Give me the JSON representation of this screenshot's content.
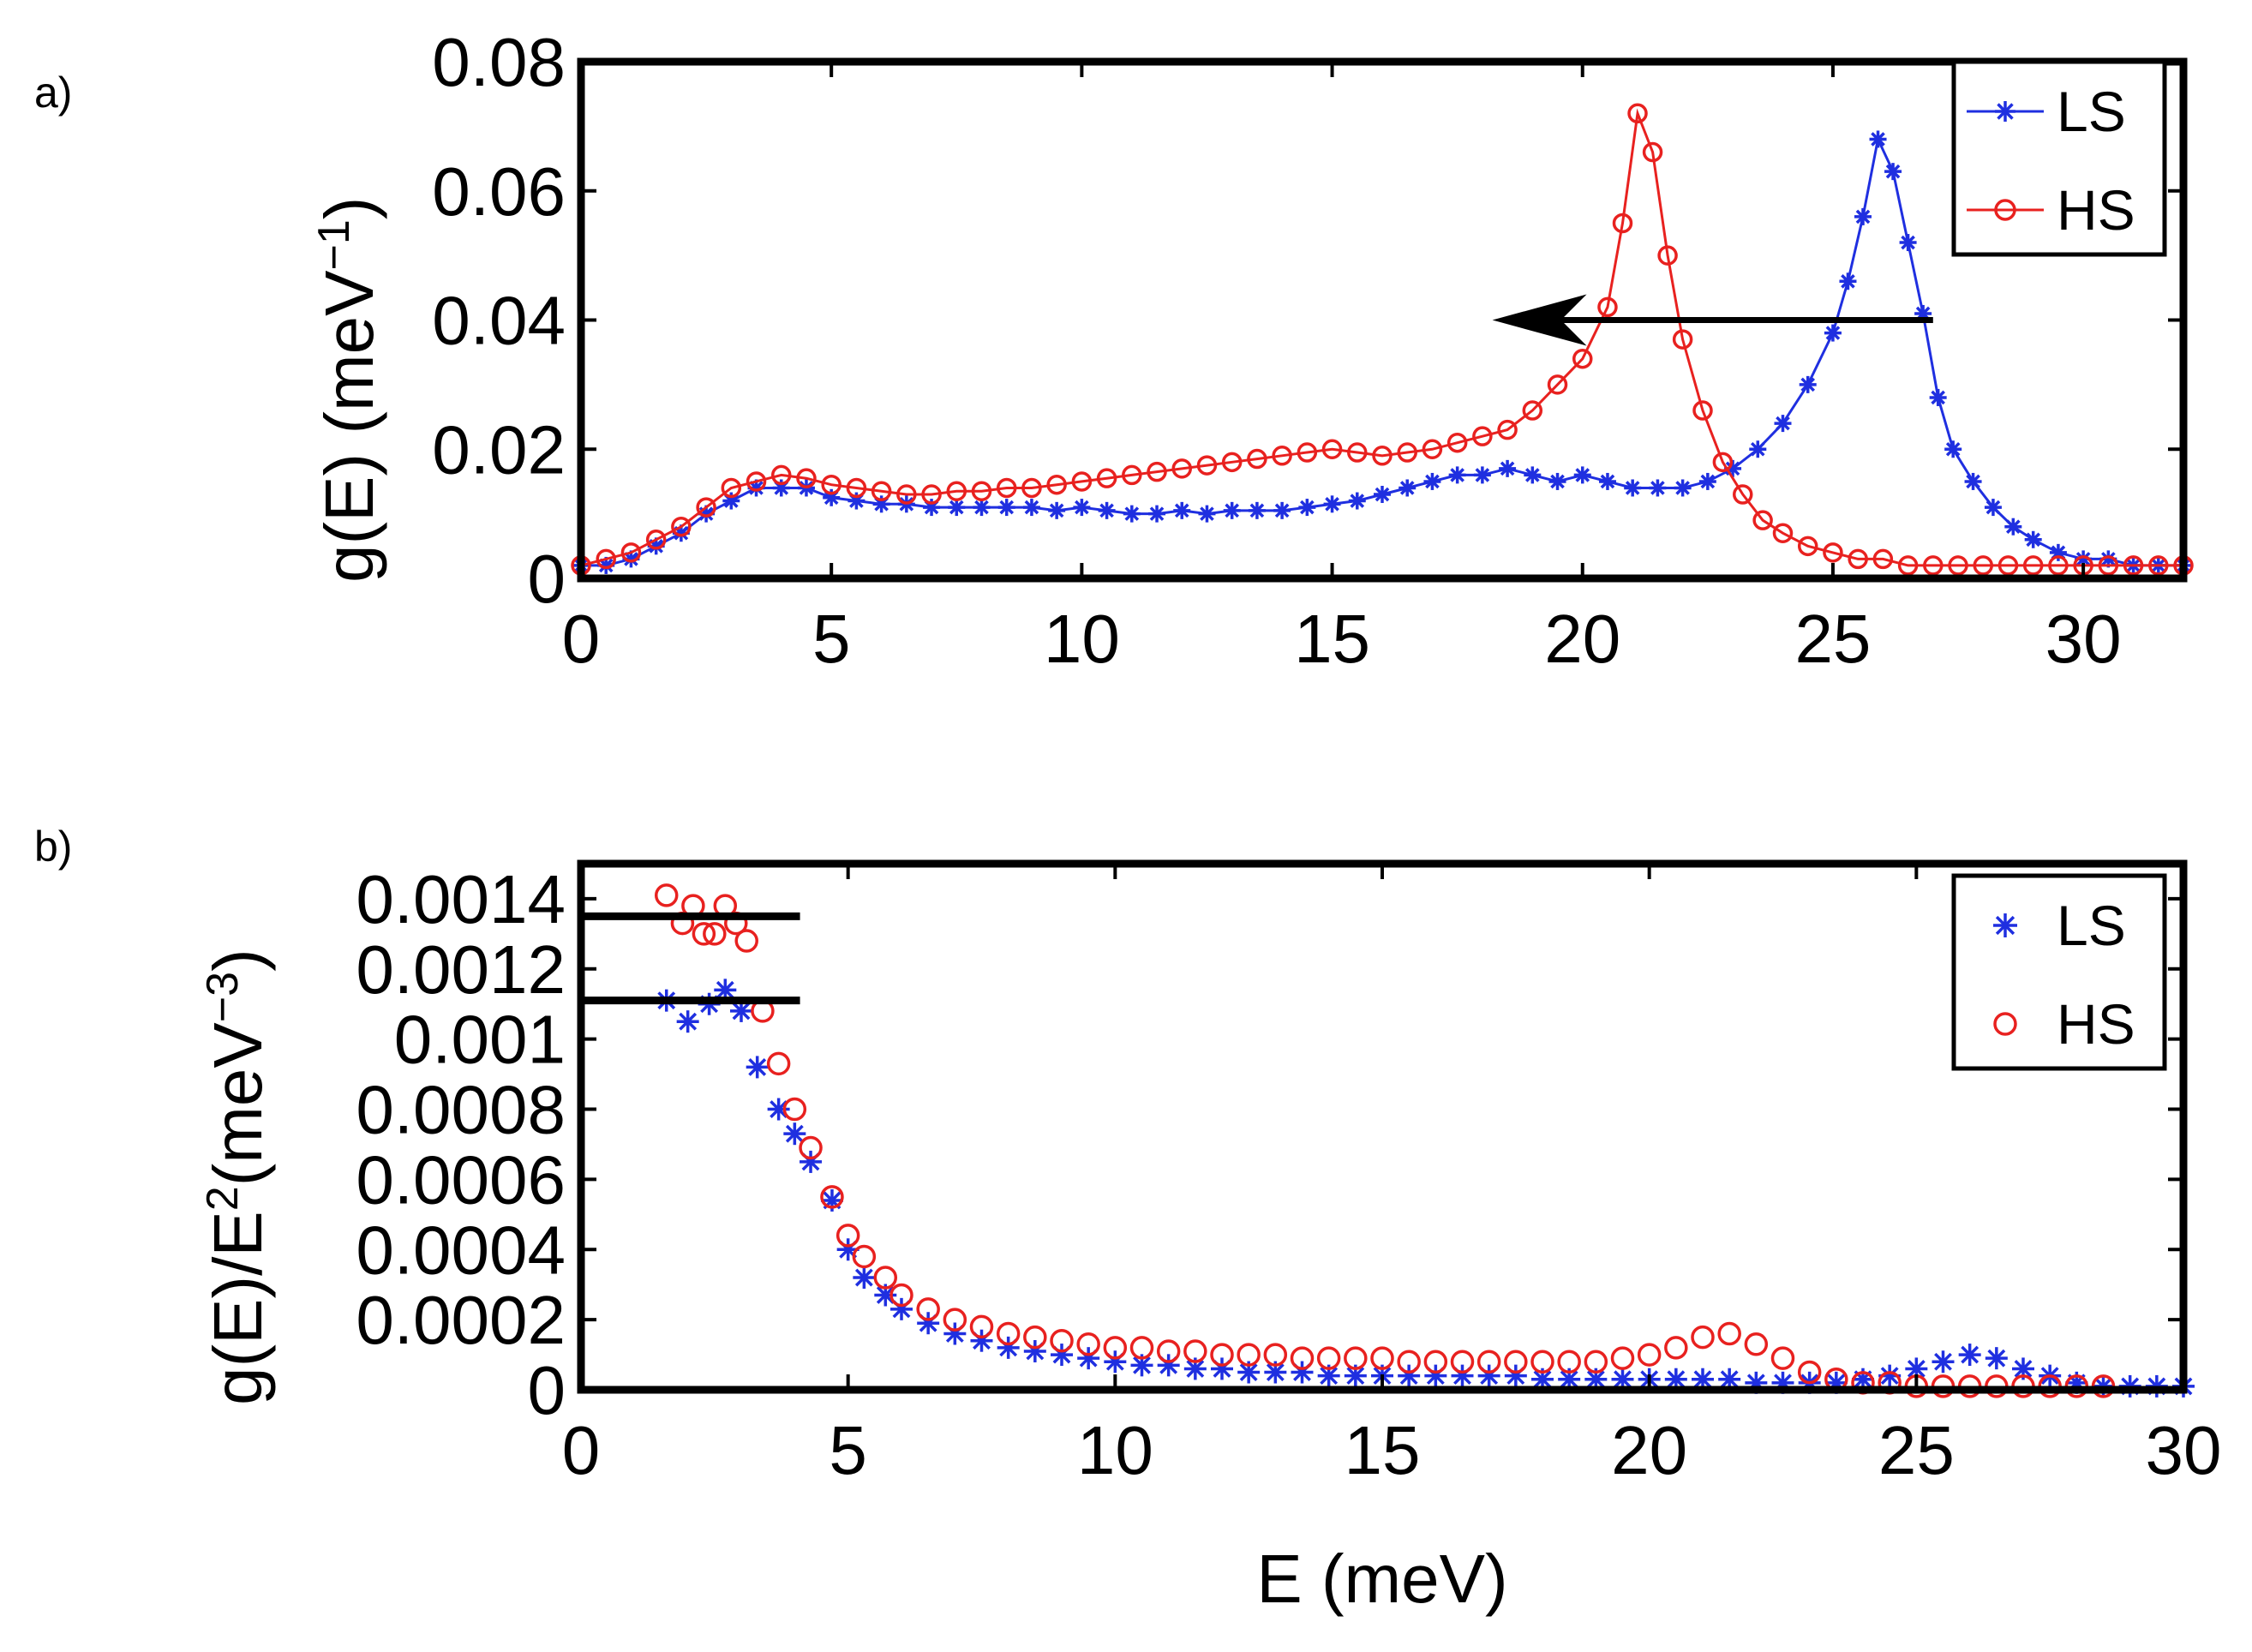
{
  "chart_data": [
    {
      "panel": "a)",
      "type": "line",
      "xlabel": "",
      "ylabel": "g(E) (meV",
      "ylabel_sup": "−1",
      "ylabel_close": ")",
      "xlim": [
        0,
        32
      ],
      "ylim": [
        0,
        0.08
      ],
      "xticks": [
        0,
        5,
        10,
        15,
        20,
        25,
        30
      ],
      "yticks": [
        0,
        0.02,
        0.04,
        0.06,
        0.08
      ],
      "ytick_labels": [
        "0",
        "0.02",
        "0.04",
        "0.06",
        "0.08"
      ],
      "legend": [
        "LS",
        "HS"
      ],
      "legend_position": "top-right",
      "annotation": {
        "type": "arrow",
        "from": [
          27,
          0.04
        ],
        "to": [
          18.2,
          0.04
        ]
      },
      "series": [
        {
          "name": "LS",
          "color": "#1f2fe0",
          "marker": "star",
          "line": true,
          "x": [
            0,
            0.5,
            1,
            1.5,
            2,
            2.5,
            3,
            3.5,
            4,
            4.5,
            5,
            5.5,
            6,
            6.5,
            7,
            7.5,
            8,
            8.5,
            9,
            9.5,
            10,
            10.5,
            11,
            11.5,
            12,
            12.5,
            13,
            13.5,
            14,
            14.5,
            15,
            15.5,
            16,
            16.5,
            17,
            17.5,
            18,
            18.5,
            19,
            19.5,
            20,
            20.5,
            21,
            21.5,
            22,
            22.5,
            23,
            23.5,
            24,
            24.5,
            25,
            25.3,
            25.6,
            25.9,
            26.2,
            26.5,
            26.8,
            27.1,
            27.4,
            27.8,
            28.2,
            28.6,
            29,
            29.5,
            30,
            30.5,
            31,
            31.5,
            32
          ],
          "y": [
            0.002,
            0.002,
            0.003,
            0.005,
            0.007,
            0.01,
            0.012,
            0.014,
            0.014,
            0.014,
            0.0125,
            0.012,
            0.0115,
            0.0115,
            0.011,
            0.011,
            0.011,
            0.011,
            0.011,
            0.0105,
            0.011,
            0.0105,
            0.01,
            0.01,
            0.0105,
            0.01,
            0.0105,
            0.0105,
            0.0105,
            0.011,
            0.0115,
            0.012,
            0.013,
            0.014,
            0.015,
            0.016,
            0.016,
            0.017,
            0.016,
            0.015,
            0.016,
            0.015,
            0.014,
            0.014,
            0.014,
            0.015,
            0.017,
            0.02,
            0.024,
            0.03,
            0.038,
            0.046,
            0.056,
            0.068,
            0.063,
            0.052,
            0.041,
            0.028,
            0.02,
            0.015,
            0.011,
            0.008,
            0.006,
            0.004,
            0.003,
            0.003,
            0.002,
            0.002,
            0.002
          ]
        },
        {
          "name": "HS",
          "color": "#e8211f",
          "marker": "circle",
          "line": true,
          "x": [
            0,
            0.5,
            1,
            1.5,
            2,
            2.5,
            3,
            3.5,
            4,
            4.5,
            5,
            5.5,
            6,
            6.5,
            7,
            7.5,
            8,
            8.5,
            9,
            9.5,
            10,
            10.5,
            11,
            11.5,
            12,
            12.5,
            13,
            13.5,
            14,
            14.5,
            15,
            15.5,
            16,
            16.5,
            17,
            17.5,
            18,
            18.5,
            19,
            19.5,
            20,
            20.5,
            20.8,
            21.1,
            21.4,
            21.7,
            22,
            22.4,
            22.8,
            23.2,
            23.6,
            24,
            24.5,
            25,
            25.5,
            26,
            26.5,
            27,
            27.5,
            28,
            28.5,
            29,
            29.5,
            30,
            30.5,
            31,
            31.5,
            32
          ],
          "y": [
            0.002,
            0.003,
            0.004,
            0.006,
            0.008,
            0.011,
            0.014,
            0.015,
            0.016,
            0.0155,
            0.0145,
            0.014,
            0.0135,
            0.013,
            0.013,
            0.0135,
            0.0135,
            0.014,
            0.014,
            0.0145,
            0.015,
            0.0155,
            0.016,
            0.0165,
            0.017,
            0.0175,
            0.018,
            0.0185,
            0.019,
            0.0195,
            0.02,
            0.0195,
            0.019,
            0.0195,
            0.02,
            0.021,
            0.022,
            0.023,
            0.026,
            0.03,
            0.034,
            0.042,
            0.055,
            0.072,
            0.066,
            0.05,
            0.037,
            0.026,
            0.018,
            0.013,
            0.009,
            0.007,
            0.005,
            0.004,
            0.003,
            0.003,
            0.002,
            0.002,
            0.002,
            0.002,
            0.002,
            0.002,
            0.002,
            0.002,
            0.002,
            0.002,
            0.002,
            0.002
          ]
        }
      ]
    },
    {
      "panel": "b)",
      "type": "scatter",
      "xlabel": "E (meV)",
      "ylabel": "g(E)/E",
      "ylabel_sup": "2",
      "ylabel_tail": "(meV",
      "ylabel_sup2": "−3",
      "ylabel_close": ")",
      "xlim": [
        0,
        30
      ],
      "ylim": [
        0,
        0.0015
      ],
      "xticks": [
        0,
        5,
        10,
        15,
        20,
        25,
        30
      ],
      "yticks": [
        0,
        0.0002,
        0.0004,
        0.0006,
        0.0008,
        0.001,
        0.0012,
        0.0014
      ],
      "ytick_labels": [
        "0",
        "0.0002",
        "0.0004",
        "0.0006",
        "0.0008",
        "0.001",
        "0.0012",
        "0.0014"
      ],
      "legend": [
        "LS",
        "HS"
      ],
      "legend_position": "top-right",
      "hlines": [
        {
          "y": 0.00135,
          "x": [
            0,
            4.1
          ]
        },
        {
          "y": 0.00111,
          "x": [
            0,
            4.1
          ]
        }
      ],
      "series": [
        {
          "name": "LS",
          "color": "#1f2fe0",
          "marker": "star",
          "line": false,
          "x": [
            1.6,
            2.0,
            2.4,
            2.7,
            3.0,
            3.3,
            3.7,
            4.0,
            4.3,
            4.7,
            5.0,
            5.3,
            5.7,
            6.0,
            6.5,
            7,
            7.5,
            8,
            8.5,
            9,
            9.5,
            10,
            10.5,
            11,
            11.5,
            12,
            12.5,
            13,
            13.5,
            14,
            14.5,
            15,
            15.5,
            16,
            16.5,
            17,
            17.5,
            18,
            18.5,
            19,
            19.5,
            20,
            20.5,
            21,
            21.5,
            22,
            22.5,
            23,
            23.5,
            24,
            24.5,
            25,
            25.5,
            26,
            26.5,
            27,
            27.5,
            28,
            28.5,
            29,
            29.5,
            30
          ],
          "y": [
            0.00111,
            0.00105,
            0.0011,
            0.00114,
            0.00108,
            0.00092,
            0.0008,
            0.00073,
            0.00065,
            0.00054,
            0.0004,
            0.00032,
            0.00027,
            0.00023,
            0.00019,
            0.00016,
            0.00014,
            0.00012,
            0.00011,
            0.0001,
            9e-05,
            8e-05,
            7e-05,
            7e-05,
            6e-05,
            6e-05,
            5e-05,
            5e-05,
            5e-05,
            4e-05,
            4e-05,
            4e-05,
            4e-05,
            4e-05,
            4e-05,
            4e-05,
            4e-05,
            3e-05,
            3e-05,
            3e-05,
            3e-05,
            3e-05,
            3e-05,
            3e-05,
            3e-05,
            2e-05,
            2e-05,
            2e-05,
            2e-05,
            3e-05,
            4e-05,
            6e-05,
            8e-05,
            0.0001,
            9e-05,
            6e-05,
            4e-05,
            2e-05,
            1e-05,
            1e-05,
            1e-05,
            1e-05
          ]
        },
        {
          "name": "HS",
          "color": "#e8211f",
          "marker": "circle",
          "line": false,
          "x": [
            1.6,
            1.9,
            2.1,
            2.3,
            2.5,
            2.7,
            2.9,
            3.1,
            3.4,
            3.7,
            4.0,
            4.3,
            4.7,
            5.0,
            5.3,
            5.7,
            6.0,
            6.5,
            7,
            7.5,
            8,
            8.5,
            9,
            9.5,
            10,
            10.5,
            11,
            11.5,
            12,
            12.5,
            13,
            13.5,
            14,
            14.5,
            15,
            15.5,
            16,
            16.5,
            17,
            17.5,
            18,
            18.5,
            19,
            19.5,
            20,
            20.5,
            21,
            21.5,
            22,
            22.5,
            23,
            23.5,
            24,
            24.5,
            25,
            25.5,
            26,
            26.5,
            27,
            27.5,
            28,
            28.5
          ],
          "y": [
            0.00141,
            0.00133,
            0.00138,
            0.0013,
            0.0013,
            0.00138,
            0.00133,
            0.00128,
            0.00108,
            0.00093,
            0.0008,
            0.00069,
            0.00055,
            0.00044,
            0.00038,
            0.00032,
            0.00027,
            0.00023,
            0.0002,
            0.00018,
            0.00016,
            0.00015,
            0.00014,
            0.00013,
            0.00012,
            0.00012,
            0.00011,
            0.00011,
            0.0001,
            0.0001,
            0.0001,
            9e-05,
            9e-05,
            9e-05,
            9e-05,
            8e-05,
            8e-05,
            8e-05,
            8e-05,
            8e-05,
            8e-05,
            8e-05,
            8e-05,
            9e-05,
            0.0001,
            0.00012,
            0.00015,
            0.00016,
            0.00013,
            9e-05,
            5e-05,
            3e-05,
            2e-05,
            2e-05,
            1e-05,
            1e-05,
            1e-05,
            1e-05,
            1e-05,
            1e-05,
            1e-05,
            1e-05
          ]
        }
      ]
    }
  ]
}
